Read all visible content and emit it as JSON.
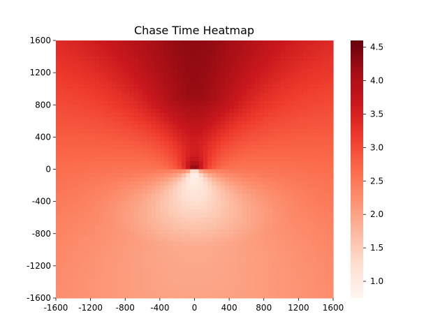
{
  "chart_data": {
    "type": "heatmap",
    "title": "Chase Time Heatmap",
    "xlabel": "",
    "ylabel": "",
    "xlim": [
      -1600,
      1600
    ],
    "ylim": [
      -1600,
      1600
    ],
    "x_ticks": [
      "-1600",
      "-1200",
      "-800",
      "-400",
      "0",
      "400",
      "800",
      "1200",
      "1600"
    ],
    "y_ticks": [
      "1600",
      "1200",
      "800",
      "400",
      "0",
      "-400",
      "-800",
      "-1200",
      "-1600"
    ],
    "colorbar": {
      "colormap": "Reds",
      "vmin": 0.75,
      "vmax": 4.6,
      "ticks": [
        "4.5",
        "4.0",
        "3.5",
        "3.0",
        "2.5",
        "2.0",
        "1.5",
        "1.0"
      ],
      "tick_values": [
        4.5,
        4.0,
        3.5,
        3.0,
        2.5,
        2.0,
        1.5,
        1.0
      ]
    },
    "grid": false,
    "min_value": 0.75,
    "max_value": 4.6,
    "description_values": {
      "center": [
        0,
        0
      ],
      "value_near_origin_above": 4.6,
      "value_near_origin_below": 0.75,
      "value_top_center": 4.3,
      "value_top_corners": 3.7,
      "value_left_right_at_y0": 3.0,
      "value_bottom_center": 2.0,
      "value_bottom_corners": 2.3
    }
  }
}
